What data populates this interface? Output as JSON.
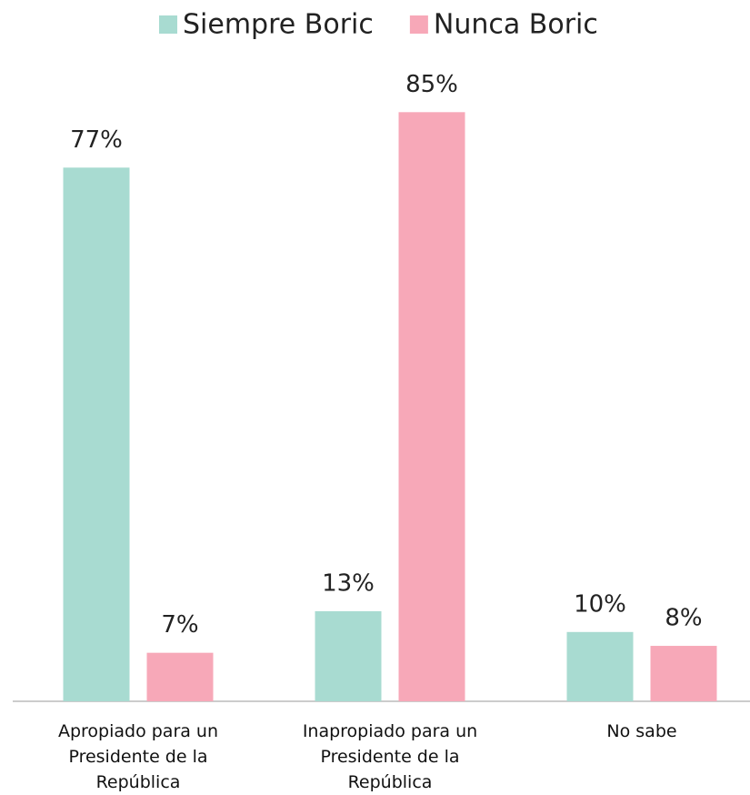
{
  "chart_data": {
    "type": "bar",
    "categories": [
      "Apropiado para un Presidente de la República",
      "Inapropiado para un Presidente de la República",
      "No sabe"
    ],
    "series": [
      {
        "name": "Siempre Boric",
        "color": "#a8dbd1",
        "values": [
          77,
          13,
          10
        ],
        "value_labels": [
          "77%",
          "13%",
          "10%"
        ]
      },
      {
        "name": "Nunca Boric",
        "color": "#f7a8b8",
        "values": [
          7,
          85,
          8
        ],
        "value_labels": [
          "7%",
          "85%",
          "8%"
        ]
      }
    ],
    "legend": "top"
  }
}
